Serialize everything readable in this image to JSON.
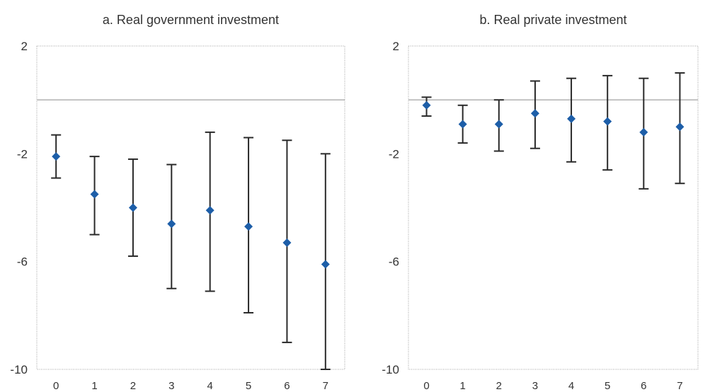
{
  "colors": {
    "marker": "#1d5ea8",
    "error_bar": "#2a2a2a",
    "zero_line": "#8a8a8a"
  },
  "chart_data": [
    {
      "type": "scatter",
      "title": "a. Real government investment",
      "xlabel": "",
      "ylabel": "",
      "x": [
        0,
        1,
        2,
        3,
        4,
        5,
        6,
        7
      ],
      "xticks": [
        "0",
        "1",
        "2",
        "3",
        "4",
        "5",
        "6",
        "7"
      ],
      "ylim": [
        -10,
        2
      ],
      "yticks": [
        2,
        -2,
        -6,
        -10
      ],
      "reference_line": 0,
      "grid": false,
      "series": [
        {
          "values": [
            -2.1,
            -3.5,
            -4.0,
            -4.6,
            -4.1,
            -4.7,
            -5.3,
            -6.1
          ],
          "lower": [
            -2.9,
            -5.0,
            -5.8,
            -7.0,
            -7.1,
            -7.9,
            -9.0,
            -10.0
          ],
          "upper": [
            -1.3,
            -2.1,
            -2.2,
            -2.4,
            -1.2,
            -1.4,
            -1.5,
            -2.0
          ]
        }
      ]
    },
    {
      "type": "scatter",
      "title": "b. Real private investment",
      "xlabel": "",
      "ylabel": "",
      "x": [
        0,
        1,
        2,
        3,
        4,
        5,
        6,
        7
      ],
      "xticks": [
        "0",
        "1",
        "2",
        "3",
        "4",
        "5",
        "6",
        "7"
      ],
      "ylim": [
        -10,
        2
      ],
      "yticks": [
        2,
        -2,
        -6,
        -10
      ],
      "reference_line": 0,
      "grid": false,
      "series": [
        {
          "values": [
            -0.2,
            -0.9,
            -0.9,
            -0.5,
            -0.7,
            -0.8,
            -1.2,
            -1.0
          ],
          "lower": [
            -0.6,
            -1.6,
            -1.9,
            -1.8,
            -2.3,
            -2.6,
            -3.3,
            -3.1
          ],
          "upper": [
            0.1,
            -0.2,
            0.0,
            0.7,
            0.8,
            0.9,
            0.8,
            1.0
          ]
        }
      ]
    }
  ]
}
